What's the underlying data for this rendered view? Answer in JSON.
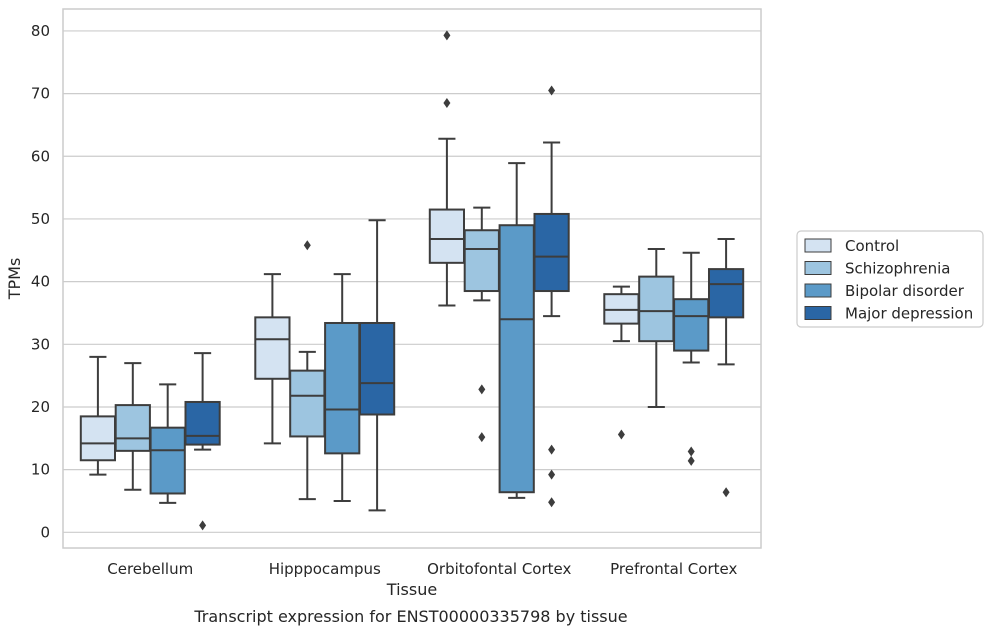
{
  "chart_data": {
    "type": "box",
    "xlabel": "Tissue",
    "ylabel": "TPMs",
    "caption": "Transcript expression for ENST00000335798 by tissue",
    "ylim": [
      -2.5,
      83.5
    ],
    "yticks": [
      0,
      10,
      20,
      30,
      40,
      50,
      60,
      70,
      80
    ],
    "grid": "horizontal",
    "legend_position": "right",
    "categories": [
      "Cerebellum",
      "Hipppocampus",
      "Orbitofontal Cortex",
      "Prefrontal Cortex"
    ],
    "series": [
      {
        "name": "Control",
        "color": "#d4e3f2",
        "boxes": [
          {
            "whislo": 9.2,
            "q1": 11.5,
            "med": 14.2,
            "q3": 18.5,
            "whishi": 28.0,
            "fliers": []
          },
          {
            "whislo": 14.2,
            "q1": 24.5,
            "med": 30.8,
            "q3": 34.3,
            "whishi": 41.2,
            "fliers": []
          },
          {
            "whislo": 36.2,
            "q1": 43.0,
            "med": 46.8,
            "q3": 51.5,
            "whishi": 62.8,
            "fliers": [
              68.5,
              79.3
            ]
          },
          {
            "whislo": 30.5,
            "q1": 33.3,
            "med": 35.5,
            "q3": 38.0,
            "whishi": 39.2,
            "fliers": [
              15.6
            ]
          }
        ]
      },
      {
        "name": "Schizophrenia",
        "color": "#9dc5e0",
        "boxes": [
          {
            "whislo": 6.8,
            "q1": 13.0,
            "med": 15.0,
            "q3": 20.3,
            "whishi": 27.0,
            "fliers": []
          },
          {
            "whislo": 5.3,
            "q1": 15.3,
            "med": 21.8,
            "q3": 25.8,
            "whishi": 28.8,
            "fliers": [
              45.8
            ]
          },
          {
            "whislo": 37.0,
            "q1": 38.5,
            "med": 45.2,
            "q3": 48.2,
            "whishi": 51.8,
            "fliers": [
              22.8,
              15.2
            ]
          },
          {
            "whislo": 20.0,
            "q1": 30.5,
            "med": 35.3,
            "q3": 40.8,
            "whishi": 45.2,
            "fliers": []
          }
        ]
      },
      {
        "name": "Bipolar disorder",
        "color": "#5b9ac8",
        "boxes": [
          {
            "whislo": 4.7,
            "q1": 6.2,
            "med": 13.1,
            "q3": 16.7,
            "whishi": 23.6,
            "fliers": []
          },
          {
            "whislo": 5.0,
            "q1": 12.6,
            "med": 19.6,
            "q3": 33.4,
            "whishi": 41.2,
            "fliers": []
          },
          {
            "whislo": 5.5,
            "q1": 6.4,
            "med": 34.0,
            "q3": 49.0,
            "whishi": 58.9,
            "fliers": []
          },
          {
            "whislo": 27.1,
            "q1": 29.0,
            "med": 34.5,
            "q3": 37.2,
            "whishi": 44.6,
            "fliers": [
              12.9,
              11.4
            ]
          }
        ]
      },
      {
        "name": "Major depression",
        "color": "#2a66a5",
        "boxes": [
          {
            "whislo": 13.2,
            "q1": 14.0,
            "med": 15.4,
            "q3": 20.8,
            "whishi": 28.6,
            "fliers": [
              1.1
            ]
          },
          {
            "whislo": 3.5,
            "q1": 18.8,
            "med": 23.8,
            "q3": 33.4,
            "whishi": 49.8,
            "fliers": []
          },
          {
            "whislo": 34.5,
            "q1": 38.5,
            "med": 44.0,
            "q3": 50.8,
            "whishi": 62.2,
            "fliers": [
              70.5,
              13.2,
              9.2,
              4.8
            ]
          },
          {
            "whislo": 26.8,
            "q1": 34.3,
            "med": 39.6,
            "q3": 42.0,
            "whishi": 46.8,
            "fliers": [
              6.4
            ]
          }
        ]
      }
    ]
  }
}
